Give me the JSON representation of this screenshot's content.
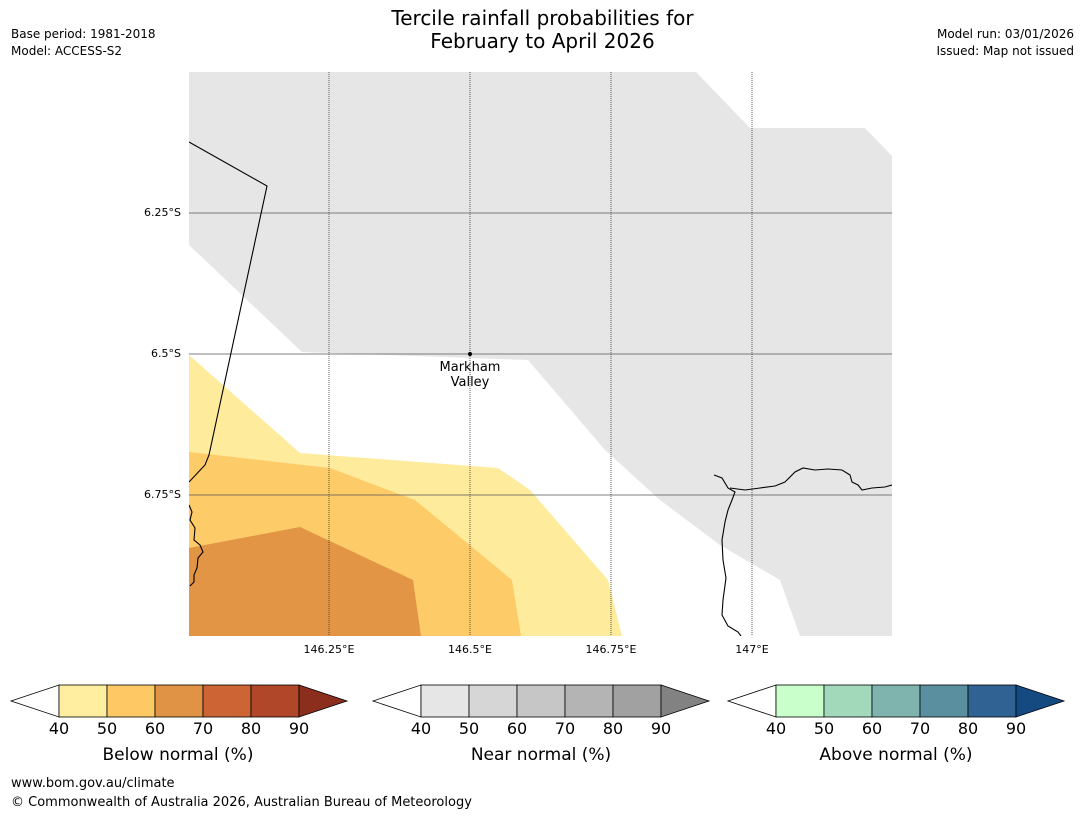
{
  "header": {
    "base_period": "Base period: 1981-2018",
    "model": "Model: ACCESS-S2",
    "title_line1": "Tercile rainfall probabilities for",
    "title_line2": "February to April 2026",
    "model_run": "Model run: 03/01/2026",
    "issued": "Issued: Map not issued"
  },
  "map": {
    "lat_labels": [
      "6.25°S",
      "6.5°S",
      "6.75°S"
    ],
    "lon_labels": [
      "146.25°E",
      "146.5°E",
      "146.75°E",
      "147°E"
    ],
    "place_line1": "Markham",
    "place_line2": "Valley",
    "colors": {
      "near_normal_fill": "#e6e6e6",
      "below_40_50": "#ffeb9c",
      "below_50_60": "#fecb69",
      "below_60_70": "#e19545"
    }
  },
  "colorbars": [
    {
      "label": "Below normal (%)",
      "ticks": [
        "40",
        "50",
        "60",
        "70",
        "80",
        "90"
      ],
      "colors": [
        "#ffeda0",
        "#fec965",
        "#e09344",
        "#cc6433",
        "#b04728",
        "#8c2e1e"
      ]
    },
    {
      "label": "Near normal (%)",
      "ticks": [
        "40",
        "50",
        "60",
        "70",
        "80",
        "90"
      ],
      "colors": [
        "#e6e6e6",
        "#d6d6d6",
        "#c6c6c6",
        "#b4b4b4",
        "#a1a1a1",
        "#828282"
      ]
    },
    {
      "label": "Above normal (%)",
      "ticks": [
        "40",
        "50",
        "60",
        "70",
        "80",
        "90"
      ],
      "colors": [
        "#c9ffca",
        "#a2d9bb",
        "#7fb4ae",
        "#5a8fa0",
        "#306393",
        "#144a80"
      ]
    }
  ],
  "footer": {
    "url": "www.bom.gov.au/climate",
    "copyright": "© Commonwealth of Australia 2026, Australian Bureau of Meteorology"
  }
}
